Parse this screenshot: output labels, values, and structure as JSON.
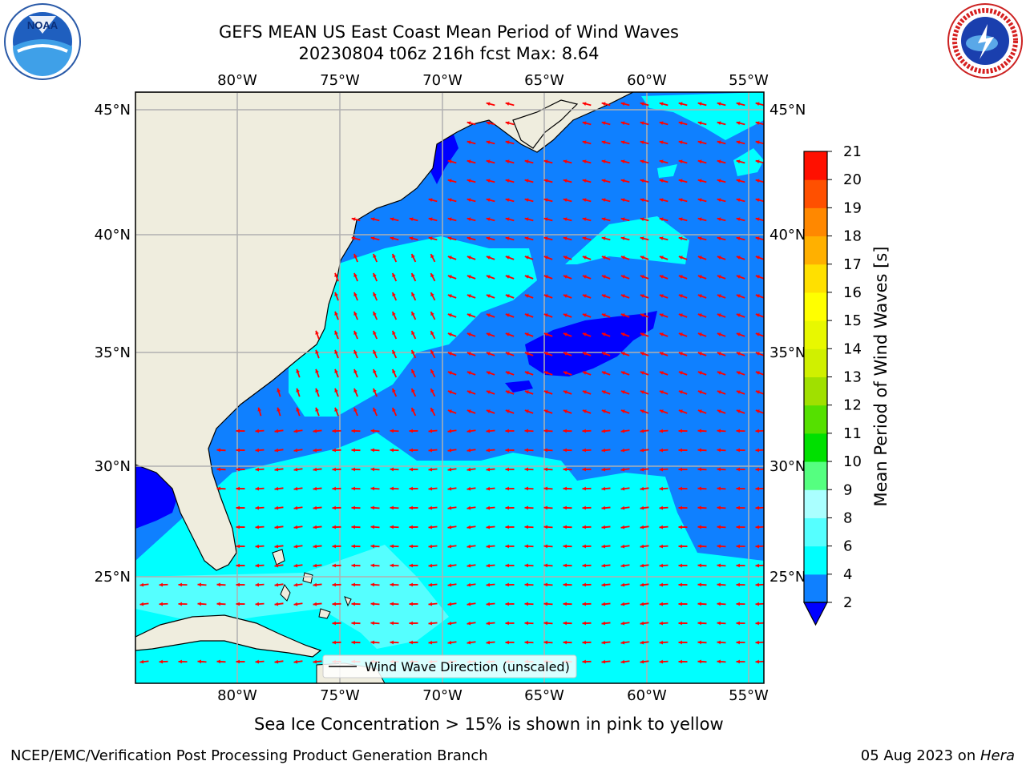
{
  "header": {
    "title_line1": "GEFS MEAN US East Coast Mean Period of Wind Waves",
    "title_line2": "20230804 t06z 216h fcst   Max: 8.64"
  },
  "map": {
    "lon_ticks": [
      "80°W",
      "75°W",
      "70°W",
      "65°W",
      "60°W",
      "55°W"
    ],
    "lat_ticks": [
      "45°N",
      "40°N",
      "35°N",
      "30°N",
      "25°N"
    ],
    "legend_label": "Wind Wave Direction (unscaled)",
    "colors": {
      "land": "#efedde",
      "ocean_2_4": "#0f80ff",
      "ocean_4_6": "#00ffff",
      "ocean_6_8": "#55ffff",
      "ocean_below_2": "#0000ff",
      "arrow": "#ff0000",
      "grid": "#b0b0b0"
    }
  },
  "colorbar": {
    "label": "Mean Period of Wind Waves [s]",
    "ticks": [
      "2",
      "4",
      "6",
      "8",
      "9",
      "10",
      "11",
      "12",
      "13",
      "14",
      "15",
      "16",
      "17",
      "18",
      "19",
      "20",
      "21"
    ],
    "colors": [
      "#0f80ff",
      "#00ffff",
      "#55ffff",
      "#aaffff",
      "#55ff80",
      "#00e000",
      "#55e000",
      "#a0e000",
      "#d0f000",
      "#e8f800",
      "#ffff00",
      "#ffe000",
      "#ffb000",
      "#ff8800",
      "#ff5000",
      "#ff1000"
    ],
    "under_color": "#0000ff"
  },
  "footer": {
    "caption": "Sea Ice Concentration > 15% is shown in pink to yellow",
    "credit": "NCEP/EMC/Verification Post Processing Product Generation Branch",
    "date": "05 Aug 2023 on ",
    "machine": "Hera"
  },
  "logos": {
    "noaa_text": "NOAA",
    "nws_text": "NATIONAL WEATHER SERVICE"
  }
}
